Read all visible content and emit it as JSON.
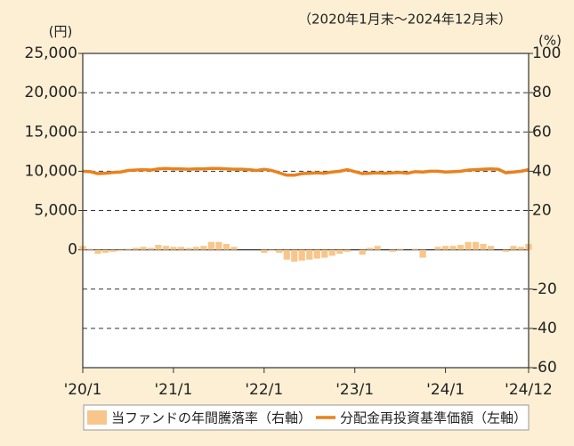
{
  "chart_data": {
    "type": "combo",
    "subtitle": "（2020年1月末～2024年12月末）",
    "y_unit_label": "(円)",
    "y2_unit_label": "(%)",
    "categories": [
      "'20/1",
      null,
      null,
      null,
      null,
      null,
      null,
      null,
      null,
      null,
      null,
      null,
      "'21/1",
      null,
      null,
      null,
      null,
      null,
      null,
      null,
      null,
      null,
      null,
      null,
      "'22/1",
      null,
      null,
      null,
      null,
      null,
      null,
      null,
      null,
      null,
      null,
      null,
      "'23/1",
      null,
      null,
      null,
      null,
      null,
      null,
      null,
      null,
      null,
      null,
      null,
      "'24/1",
      null,
      null,
      null,
      null,
      null,
      null,
      null,
      null,
      null,
      null,
      "'24/12"
    ],
    "ylim": [
      -15000,
      25000
    ],
    "yticks": [
      0,
      {
        "value": 5000,
        "label": "5,000"
      },
      {
        "value": 10000,
        "label": "10,000"
      },
      {
        "value": 15000,
        "label": "15,000"
      },
      {
        "value": 20000,
        "label": "20,000"
      },
      {
        "value": 25000,
        "label": "25,000"
      }
    ],
    "y2lim": [
      -60,
      100
    ],
    "y2ticks": [
      -60,
      -40,
      -20,
      20,
      40,
      60,
      80,
      100
    ],
    "grid": true,
    "series": [
      {
        "name": "当ファンドの年間騰落率（右軸）",
        "type": "bar",
        "axis": "y2",
        "color": "#f8c68a",
        "values": [
          2,
          0.5,
          -2,
          -1.5,
          -1,
          -0.5,
          0.5,
          1,
          1.5,
          1,
          2.5,
          2,
          1.5,
          1.5,
          1,
          1.5,
          2,
          4,
          4,
          3,
          1.5,
          0,
          0,
          0,
          -1.5,
          -0.5,
          -1.5,
          -5,
          -6,
          -5.5,
          -5,
          -4.5,
          -4,
          -3,
          -2,
          -1,
          0,
          -2.5,
          1,
          2,
          0,
          -1,
          0.5,
          0,
          0.5,
          -4,
          0,
          1.5,
          2,
          2,
          2.5,
          4,
          4,
          3,
          2,
          0,
          -1,
          2,
          1.5,
          3
        ]
      },
      {
        "name": "分配金再投資基準価額（左軸）",
        "type": "line",
        "axis": "y",
        "color": "#e8821e",
        "values": [
          10000,
          9950,
          9700,
          9750,
          9850,
          9900,
          10100,
          10150,
          10200,
          10150,
          10300,
          10350,
          10300,
          10300,
          10250,
          10300,
          10300,
          10350,
          10350,
          10300,
          10250,
          10250,
          10200,
          10100,
          10250,
          10100,
          9800,
          9500,
          9500,
          9700,
          9750,
          9800,
          9750,
          9900,
          10000,
          10200,
          9950,
          9700,
          9750,
          9800,
          9750,
          9800,
          9850,
          9750,
          9950,
          9900,
          10000,
          10000,
          9900,
          9950,
          10000,
          10150,
          10200,
          10250,
          10300,
          10250,
          9800,
          9900,
          10000,
          10200
        ]
      }
    ]
  }
}
